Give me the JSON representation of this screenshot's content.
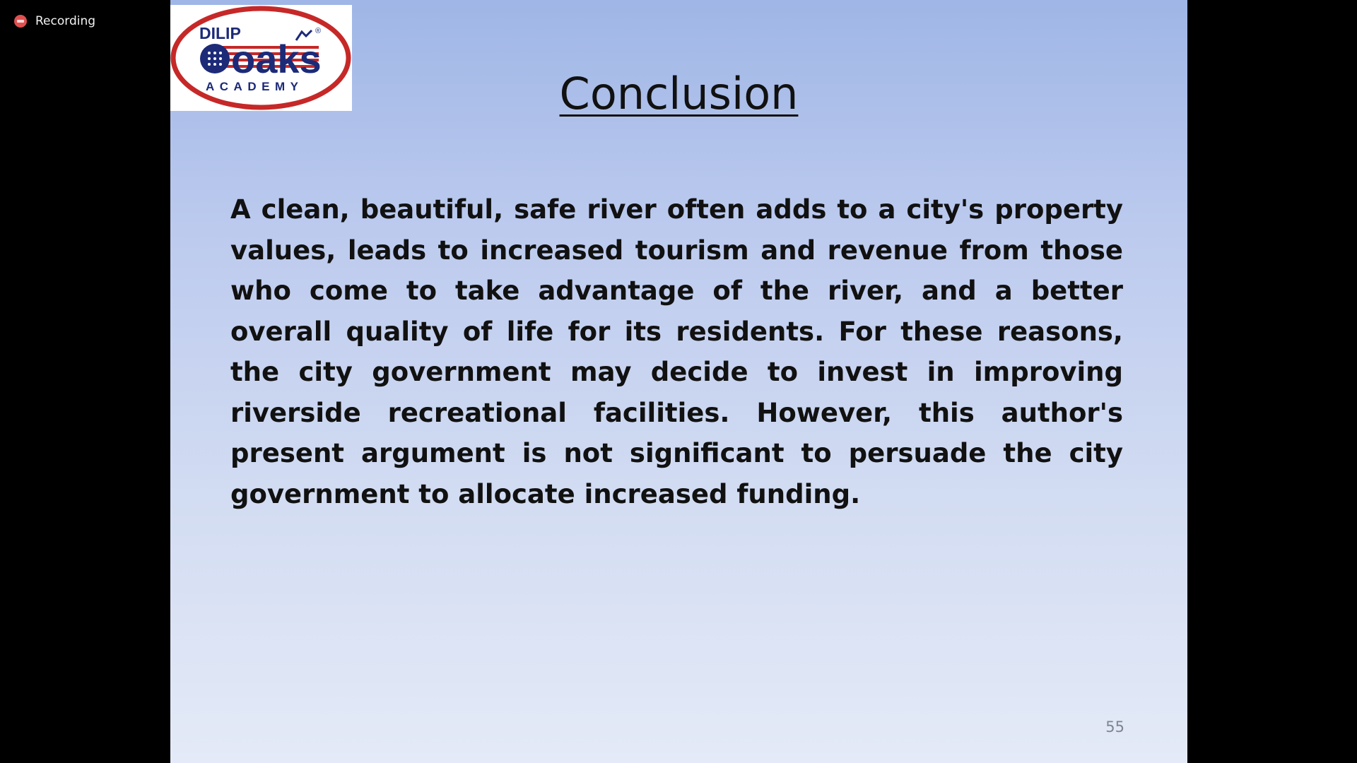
{
  "recording": {
    "label": "Recording",
    "icon": "record-dot-icon",
    "color": "#e05050"
  },
  "logo": {
    "top_text": "DILIP",
    "main_text": "oaks",
    "bottom_text": "ACADEMY",
    "registered_mark": "®",
    "colors": {
      "ring": "#c62828",
      "text": "#1c2a78",
      "globe": "#1c2a78"
    }
  },
  "slide": {
    "title": "Conclusion",
    "body": "A clean, beautiful, safe river often adds to a city's property values, leads to increased tourism and revenue from those who come to take advantage of the river, and a better overall quality of life for its residents. For these reasons, the city government may decide to invest in improving riverside recreational facilities. However, this author's present argument is not significant to persuade the city government to allocate increased funding.",
    "page_number": "55"
  }
}
